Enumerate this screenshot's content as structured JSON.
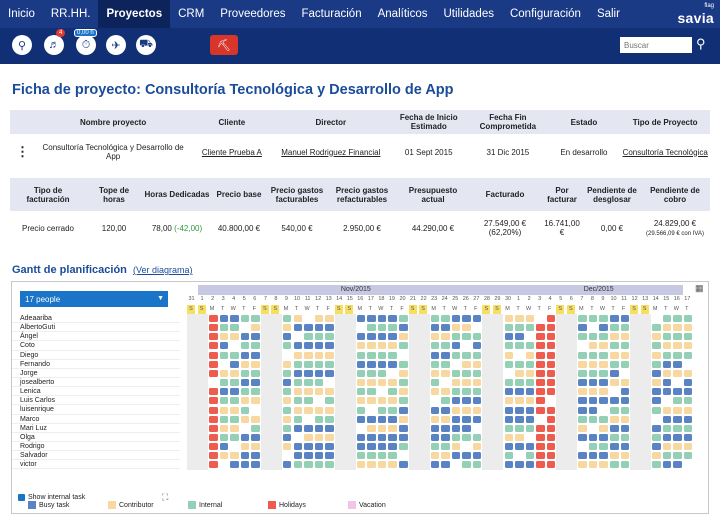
{
  "nav": {
    "items": [
      {
        "label": "Inicio"
      },
      {
        "label": "RR.HH."
      },
      {
        "label": "Proyectos",
        "active": true
      },
      {
        "label": "CRM"
      },
      {
        "label": "Proveedores"
      },
      {
        "label": "Facturación"
      },
      {
        "label": "Analíticos"
      },
      {
        "label": "Utilidades"
      },
      {
        "label": "Configuración"
      },
      {
        "label": "Salir"
      }
    ],
    "brand_small": "flag",
    "brand": "savia"
  },
  "toolbar": {
    "notification_count": "4",
    "hours": "0,00 h",
    "search_placeholder": "Buscar"
  },
  "project": {
    "title": "Ficha de proyecto: Consultoría Tecnológica y Desarrollo de App",
    "headers": {
      "name": "Nombre proyecto",
      "client": "Cliente",
      "director": "Director",
      "start": "Fecha de Inicio Estimado",
      "end": "Fecha Fin Comprometida",
      "state": "Estado",
      "type": "Tipo de Proyecto"
    },
    "values": {
      "name": "Consultoría Tecnológica y Desarrollo de App",
      "client": "Cliente Prueba A",
      "director": "Manuel Rodriguez Financial",
      "start": "01 Sept 2015",
      "end": "31 Dic 2015",
      "state": "En desarrollo",
      "type": "Consultoría Tecnológica"
    }
  },
  "financial": {
    "headers": {
      "billing_type": "Tipo de facturación",
      "hours_cap": "Tope de horas",
      "hours_spent": "Horas Dedicadas",
      "base_price": "Precio base",
      "billable_expenses": "Precio gastos facturables",
      "rebillable_expenses": "Precio gastos refacturables",
      "budget": "Presupuesto actual",
      "billed": "Facturado",
      "to_bill": "Por facturar",
      "to_break_down": "Pendiente de desglosar",
      "to_collect": "Pendiente de cobro"
    },
    "values": {
      "billing_type": "Precio cerrado",
      "hours_cap": "120,00",
      "hours_spent": "78,00",
      "hours_delta": "(-42,00)",
      "base_price": "40.800,00 €",
      "billable_expenses": "540,00 €",
      "rebillable_expenses": "2.950,00 €",
      "budget": "44.290,00 €",
      "billed": "27.549,00 €",
      "billed_pct": "(62,20%)",
      "to_bill": "16.741,00 €",
      "to_break_down": "0,00 €",
      "to_collect": "24.829,00 €",
      "to_collect_note": "(29.566,09 € con IVA)"
    }
  },
  "gantt": {
    "title": "Gantt de planificación",
    "link": "(Ver diagrama)",
    "people_select": "17 people",
    "months": [
      "Nov/2015",
      "Dec/2015"
    ],
    "days": [
      "31",
      "1",
      "2",
      "3",
      "4",
      "5",
      "6",
      "7",
      "8",
      "9",
      "10",
      "11",
      "12",
      "13",
      "14",
      "15",
      "16",
      "17",
      "18",
      "19",
      "20",
      "21",
      "22",
      "23",
      "24",
      "25",
      "26",
      "27",
      "28",
      "29",
      "30",
      "1",
      "2",
      "3",
      "4",
      "5",
      "6",
      "7",
      "8",
      "9",
      "10",
      "11",
      "12",
      "13",
      "14",
      "15",
      "16",
      "17"
    ],
    "day_letters": [
      "S",
      "S",
      "M",
      "T",
      "W",
      "T",
      "F",
      "S",
      "S",
      "M",
      "T",
      "W",
      "T",
      "F",
      "S",
      "S",
      "M",
      "T",
      "W",
      "T",
      "F",
      "S",
      "S",
      "M",
      "T",
      "W",
      "T",
      "F",
      "S",
      "S",
      "M",
      "T",
      "W",
      "T",
      "F",
      "S",
      "S",
      "M",
      "T",
      "W",
      "T",
      "F",
      "S",
      "S",
      "M",
      "T",
      "W",
      "T"
    ],
    "people": [
      "Adeaariba",
      "AlbertoGuti",
      "Ángel",
      "Coto",
      "Diego",
      "Fernando",
      "Jorge",
      "josealberto",
      "Lenica",
      "Luis Carlos",
      "luisenrique",
      "Marco",
      "Mari Luz",
      "Olga",
      "Rodrigo",
      "Salvador",
      "victor"
    ],
    "show_internal": "Show internal task",
    "legend": [
      {
        "label": "Busy task",
        "color": "#5a83c4"
      },
      {
        "label": "Contributor",
        "color": "#f6d8a0"
      },
      {
        "label": "Internal",
        "color": "#93d0b5"
      },
      {
        "label": "Holidays",
        "color": "#ee5b4f"
      },
      {
        "label": "Vacation",
        "color": "#f0c6e8"
      }
    ]
  }
}
